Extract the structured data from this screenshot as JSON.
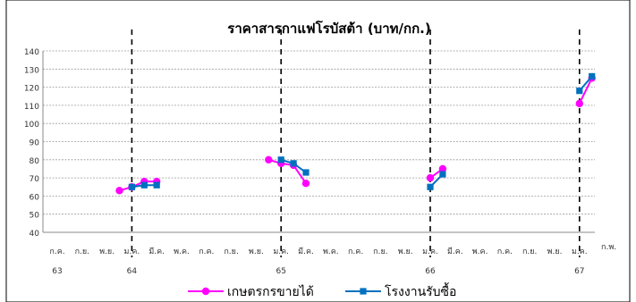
{
  "chart_data": {
    "type": "line",
    "title": "ราคาสารกาแฟโรบัสต้า (บาท/กก.)",
    "ylim": [
      40,
      140
    ],
    "yticks": [
      40,
      50,
      60,
      70,
      80,
      90,
      100,
      110,
      120,
      130,
      140
    ],
    "grid": true,
    "legend_position": "bottom",
    "month_labels": [
      "ก.ค.",
      "ก.ย.",
      "พ.ย.",
      "ม.ค.",
      "มี.ค.",
      "พ.ค.",
      "ก.ค.",
      "ก.ย.",
      "พ.ย.",
      "ม.ค.",
      "มี.ค.",
      "พ.ค.",
      "ก.ค.",
      "ก.ย.",
      "พ.ย.",
      "ม.ค.",
      "มี.ค.",
      "พ.ค.",
      "ก.ค.",
      "ก.ย.",
      "พ.ย.",
      "ม.ค.",
      "ก.พ."
    ],
    "year_labels": [
      {
        "label": "63",
        "month_index": 0
      },
      {
        "label": "64",
        "month_index": 6
      },
      {
        "label": "65",
        "month_index": 18
      },
      {
        "label": "66",
        "month_index": 30
      },
      {
        "label": "67",
        "month_index": 42
      }
    ],
    "year_dividers_month_index": [
      6,
      18,
      30,
      42
    ],
    "series": [
      {
        "name": "เกษตรกรขายได้",
        "color": "#ff00ff",
        "marker": "circle",
        "segments": [
          [
            [
              5,
              63
            ],
            [
              6,
              65
            ],
            [
              7,
              68
            ],
            [
              8,
              68
            ]
          ],
          [
            [
              17,
              80
            ],
            [
              18,
              78
            ],
            [
              19,
              77
            ],
            [
              20,
              67
            ]
          ],
          [
            [
              30,
              70
            ],
            [
              31,
              75
            ]
          ],
          [
            [
              42,
              111
            ],
            [
              43,
              125
            ]
          ]
        ]
      },
      {
        "name": "โรงงานรับซื้อ",
        "color": "#0070c0",
        "marker": "square",
        "segments": [
          [
            [
              6,
              65
            ],
            [
              7,
              66
            ],
            [
              8,
              66
            ]
          ],
          [
            [
              18,
              80
            ],
            [
              19,
              78
            ],
            [
              20,
              73
            ]
          ],
          [
            [
              30,
              65
            ],
            [
              31,
              72
            ]
          ],
          [
            [
              42,
              118
            ],
            [
              43,
              126
            ]
          ]
        ]
      }
    ]
  }
}
